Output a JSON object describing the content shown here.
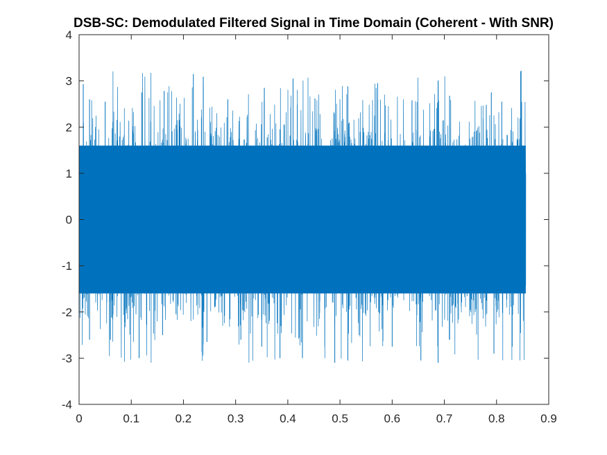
{
  "colors": {
    "series": "#0072BD",
    "axes": "#262626",
    "background": "#ffffff"
  },
  "chart_data": {
    "type": "line",
    "title": "DSB-SC: Demodulated Filtered Signal in Time Domain (Coherent - With SNR)",
    "xlabel": "",
    "ylabel": "",
    "xlim": [
      0,
      0.9
    ],
    "ylim": [
      -4,
      4
    ],
    "xticks": [
      0,
      0.1,
      0.2,
      0.3,
      0.4,
      0.5,
      0.6,
      0.7,
      0.8,
      0.9
    ],
    "xtick_labels": [
      "0",
      "0.1",
      "0.2",
      "0.3",
      "0.4",
      "0.5",
      "0.6",
      "0.7",
      "0.8",
      "0.9"
    ],
    "yticks": [
      -4,
      -3,
      -2,
      -1,
      0,
      1,
      2,
      3,
      4
    ],
    "ytick_labels": [
      "-4",
      "-3",
      "-2",
      "-1",
      "0",
      "1",
      "2",
      "3",
      "4"
    ],
    "grid": false,
    "legend": "none",
    "series": [
      {
        "color": "#0072BD",
        "x_start": 0,
        "x_end": 0.856,
        "dense_band": [
          -1.6,
          1.6
        ],
        "typical_range": [
          -2.2,
          2.2
        ],
        "max": 3.22,
        "min": -3.1,
        "peaks": [
          {
            "x": 0.008,
            "y": 2.93
          },
          {
            "x": 0.02,
            "y": 2.6
          },
          {
            "x": 0.05,
            "y": 2.55
          },
          {
            "x": 0.12,
            "y": 2.75
          },
          {
            "x": 0.163,
            "y": 2.78
          },
          {
            "x": 0.219,
            "y": 3.15
          },
          {
            "x": 0.238,
            "y": 2.9
          },
          {
            "x": 0.238,
            "y": 3.09
          },
          {
            "x": 0.285,
            "y": 2.6
          },
          {
            "x": 0.355,
            "y": 2.85
          },
          {
            "x": 0.41,
            "y": 3.05
          },
          {
            "x": 0.452,
            "y": 2.62
          },
          {
            "x": 0.515,
            "y": 2.88
          },
          {
            "x": 0.572,
            "y": 2.95
          },
          {
            "x": 0.638,
            "y": 2.58
          },
          {
            "x": 0.71,
            "y": 2.68
          },
          {
            "x": 0.79,
            "y": 2.75
          },
          {
            "x": 0.81,
            "y": 2.55
          },
          {
            "x": 0.847,
            "y": 3.22
          }
        ],
        "troughs": [
          {
            "x": 0.02,
            "y": -2.6
          },
          {
            "x": 0.06,
            "y": -2.6
          },
          {
            "x": 0.115,
            "y": -3.0
          },
          {
            "x": 0.16,
            "y": -2.5
          },
          {
            "x": 0.245,
            "y": -2.65
          },
          {
            "x": 0.31,
            "y": -2.6
          },
          {
            "x": 0.35,
            "y": -2.75
          },
          {
            "x": 0.385,
            "y": -3.0
          },
          {
            "x": 0.428,
            "y": -3.0
          },
          {
            "x": 0.49,
            "y": -3.1
          },
          {
            "x": 0.515,
            "y": -3.05
          },
          {
            "x": 0.6,
            "y": -2.75
          },
          {
            "x": 0.655,
            "y": -3.05
          },
          {
            "x": 0.688,
            "y": -3.1
          },
          {
            "x": 0.71,
            "y": -2.6
          },
          {
            "x": 0.795,
            "y": -2.9
          },
          {
            "x": 0.83,
            "y": -2.75
          }
        ]
      }
    ]
  }
}
